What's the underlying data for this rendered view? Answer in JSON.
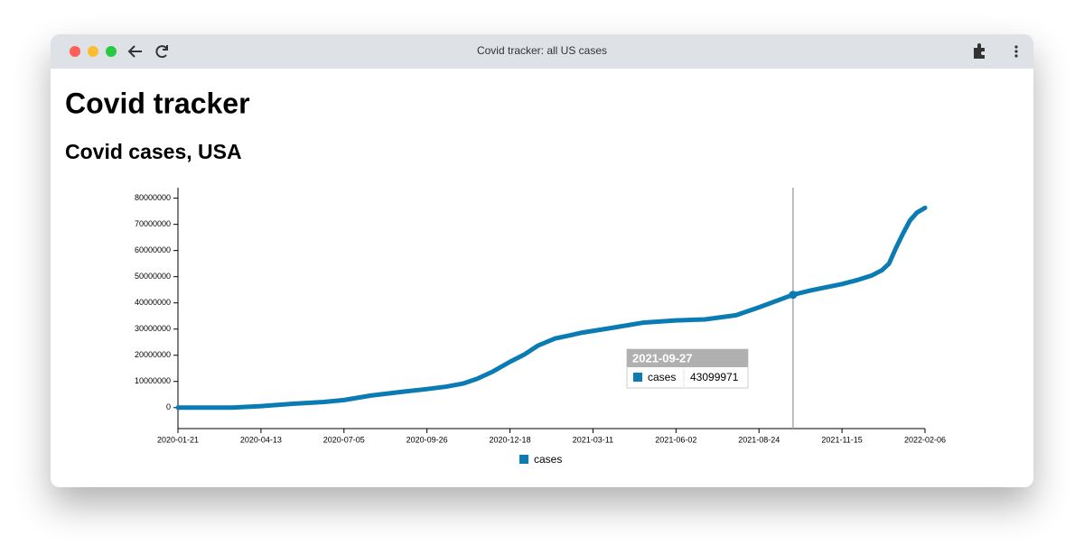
{
  "window": {
    "title": "Covid tracker: all US cases"
  },
  "page": {
    "heading": "Covid tracker",
    "subheading": "Covid cases, USA"
  },
  "chart_data": {
    "type": "line",
    "x": [
      "2020-01-21",
      "2020-03-15",
      "2020-04-13",
      "2020-05-15",
      "2020-06-15",
      "2020-07-05",
      "2020-08-01",
      "2020-09-01",
      "2020-09-26",
      "2020-10-15",
      "2020-11-01",
      "2020-11-15",
      "2020-12-01",
      "2020-12-18",
      "2021-01-01",
      "2021-01-15",
      "2021-02-01",
      "2021-03-01",
      "2021-03-11",
      "2021-04-01",
      "2021-05-01",
      "2021-06-02",
      "2021-07-01",
      "2021-08-01",
      "2021-08-24",
      "2021-09-27",
      "2021-10-15",
      "2021-11-15",
      "2021-12-01",
      "2021-12-15",
      "2021-12-25",
      "2022-01-01",
      "2022-01-08",
      "2022-01-15",
      "2022-01-22",
      "2022-01-29",
      "2022-02-06"
    ],
    "series": [
      {
        "name": "cases",
        "color": "#0b7bb3",
        "values": [
          1,
          3500,
          580000,
          1470000,
          2150000,
          2900000,
          4620000,
          6050000,
          7100000,
          8000000,
          9200000,
          11000000,
          13800000,
          17500000,
          20200000,
          23700000,
          26400000,
          28700000,
          29300000,
          30600000,
          32500000,
          33300000,
          33700000,
          35300000,
          38300000,
          43099971,
          44800000,
          47200000,
          48800000,
          50500000,
          52500000,
          55000000,
          61000000,
          66500000,
          71500000,
          74500000,
          76300000
        ]
      }
    ],
    "xlim": [
      "2020-01-21",
      "2022-02-06"
    ],
    "xticks": [
      "2020-01-21",
      "2020-04-13",
      "2020-07-05",
      "2020-09-26",
      "2020-12-18",
      "2021-03-11",
      "2021-06-02",
      "2021-08-24",
      "2021-11-15",
      "2022-02-06"
    ],
    "ylim": [
      -8000000,
      84000000
    ],
    "yticks": [
      0,
      10000000,
      20000000,
      30000000,
      40000000,
      50000000,
      60000000,
      70000000,
      80000000
    ]
  }
}
